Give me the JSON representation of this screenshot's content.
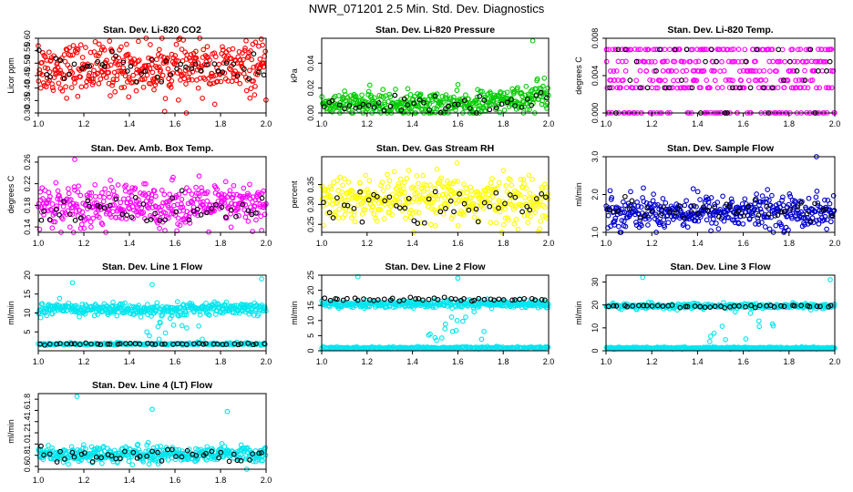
{
  "page_title": "NWR_071201  2.5 Min. Std. Dev. Diagnostics",
  "chart_data": [
    {
      "type": "scatter",
      "title": "Stan. Dev. Li-820 CO2",
      "ylabel": "Licor ppm",
      "xlim": [
        1.0,
        2.0
      ],
      "ylim": [
        0.3,
        0.6
      ],
      "xticks": [
        "1.0",
        "1.2",
        "1.4",
        "1.6",
        "1.8",
        "2.0"
      ],
      "yticks": [
        "0.30",
        "0.35",
        "0.40",
        "0.45",
        "0.50",
        "0.55",
        "0.60"
      ],
      "color": "#ff0000",
      "series": [
        {
          "name": "cloud",
          "center": 0.48,
          "spread": 0.05,
          "count": 420
        },
        {
          "name": "black",
          "center": 0.48,
          "spread": 0.03,
          "count": 45
        }
      ],
      "outliers": [
        {
          "x": 1.0,
          "y": 0.57
        },
        {
          "x": 1.65,
          "y": 0.3
        }
      ]
    },
    {
      "type": "scatter",
      "title": "Stan. Dev. Li-820 Pressure",
      "ylabel": "kPa",
      "xlim": [
        1.0,
        2.0
      ],
      "ylim": [
        0.0,
        0.06
      ],
      "xticks": [
        "1.0",
        "1.2",
        "1.4",
        "1.6",
        "1.8",
        "2.0"
      ],
      "yticks": [
        "0.00",
        "0.02",
        "0.04"
      ],
      "color": "#00cc00",
      "series": [
        {
          "name": "cloud",
          "center": 0.007,
          "spread": 0.005,
          "count": 420
        },
        {
          "name": "black",
          "center": 0.007,
          "spread": 0.003,
          "count": 45
        }
      ],
      "outliers": [
        {
          "x": 1.93,
          "y": 0.058
        }
      ]
    },
    {
      "type": "scatter",
      "title": "Stan. Dev. Li-820 Temp.",
      "ylabel": "degrees C",
      "xlim": [
        1.0,
        2.0
      ],
      "ylim": [
        0.0,
        0.008
      ],
      "xticks": [
        "1.0",
        "1.2",
        "1.4",
        "1.6",
        "1.8",
        "2.0"
      ],
      "yticks": [
        "0.000",
        "0.004",
        "0.008"
      ],
      "color": "#ff00ff",
      "levels": [
        0.0,
        0.0027,
        0.0035,
        0.0045,
        0.0055,
        0.0068
      ],
      "series": [
        {
          "name": "cloud",
          "count": 380
        },
        {
          "name": "black",
          "count": 40
        }
      ]
    },
    {
      "type": "scatter",
      "title": "Stan. Dev. Amb. Box Temp.",
      "ylabel": "degrees C",
      "xlim": [
        1.0,
        2.0
      ],
      "ylim": [
        0.13,
        0.27
      ],
      "xticks": [
        "1.0",
        "1.2",
        "1.4",
        "1.6",
        "1.8",
        "2.0"
      ],
      "yticks": [
        "0.14",
        "0.18",
        "0.22",
        "0.26"
      ],
      "color": "#ff00ff",
      "series": [
        {
          "name": "cloud",
          "center": 0.18,
          "spread": 0.02,
          "count": 420
        },
        {
          "name": "black",
          "center": 0.17,
          "spread": 0.015,
          "count": 45
        }
      ],
      "outliers": [
        {
          "x": 1.16,
          "y": 0.265
        }
      ]
    },
    {
      "type": "scatter",
      "title": "Stan. Dev. Gas Stream RH",
      "ylabel": "percent",
      "xlim": [
        1.0,
        2.0
      ],
      "ylim": [
        0.23,
        0.42
      ],
      "xticks": [
        "1.0",
        "1.2",
        "1.4",
        "1.6",
        "1.8",
        "2.0"
      ],
      "yticks": [
        "0.25",
        "0.30",
        "0.35"
      ],
      "color": "#ffff00",
      "series": [
        {
          "name": "cloud",
          "center": 0.31,
          "spread": 0.03,
          "count": 420
        },
        {
          "name": "black",
          "center": 0.3,
          "spread": 0.025,
          "count": 45
        }
      ]
    },
    {
      "type": "scatter",
      "title": "Stan. Dev. Sample Flow",
      "ylabel": "ml/min",
      "xlim": [
        1.0,
        2.0
      ],
      "ylim": [
        1.0,
        3.0
      ],
      "xticks": [
        "1.0",
        "1.2",
        "1.4",
        "1.6",
        "1.8",
        "2.0"
      ],
      "yticks": [
        "1.0",
        "2.0",
        "3.0"
      ],
      "color": "#0000cc",
      "series": [
        {
          "name": "cloud",
          "center": 1.55,
          "spread": 0.22,
          "count": 420
        },
        {
          "name": "black",
          "center": 1.55,
          "spread": 0.15,
          "count": 45
        }
      ],
      "outliers": [
        {
          "x": 1.92,
          "y": 3.0
        }
      ]
    },
    {
      "type": "scatter",
      "title": "Stan. Dev. Line 1 Flow",
      "ylabel": "ml/min",
      "xlim": [
        1.0,
        2.0
      ],
      "ylim": [
        0,
        20
      ],
      "xticks": [
        "1.0",
        "1.2",
        "1.4",
        "1.6",
        "1.8",
        "2.0"
      ],
      "yticks": [
        "5",
        "10",
        "15",
        "20"
      ],
      "color": "#00e5ee",
      "series": [
        {
          "name": "band-high",
          "center": 11,
          "spread": 0.8,
          "count": 400
        },
        {
          "name": "band-low",
          "center": 1.8,
          "spread": 0.15,
          "count": 200
        },
        {
          "name": "black",
          "center": 1.8,
          "spread": 0.1,
          "count": 45
        }
      ],
      "outliers": [
        {
          "x": 1.15,
          "y": 18
        },
        {
          "x": 1.5,
          "y": 17.5
        },
        {
          "x": 1.98,
          "y": 19
        }
      ]
    },
    {
      "type": "scatter",
      "title": "Stan. Dev. Line 2 Flow",
      "ylabel": "ml/min",
      "xlim": [
        1.0,
        2.0
      ],
      "ylim": [
        0,
        25
      ],
      "xticks": [
        "1.0",
        "1.2",
        "1.4",
        "1.6",
        "1.8",
        "2.0"
      ],
      "yticks": [
        "0",
        "5",
        "10",
        "15",
        "20",
        "25"
      ],
      "color": "#00e5ee",
      "series": [
        {
          "name": "band-high",
          "center": 15.5,
          "spread": 0.6,
          "count": 380
        },
        {
          "name": "band-low",
          "center": 1.0,
          "spread": 0.15,
          "count": 220
        },
        {
          "name": "black",
          "center": 17,
          "spread": 0.3,
          "count": 45
        }
      ],
      "outliers": [
        {
          "x": 1.16,
          "y": 24.5
        },
        {
          "x": 1.6,
          "y": 24
        }
      ]
    },
    {
      "type": "scatter",
      "title": "Stan. Dev. Line 3 Flow",
      "ylabel": "ml/min",
      "xlim": [
        1.0,
        2.0
      ],
      "ylim": [
        0,
        33
      ],
      "xticks": [
        "1.0",
        "1.2",
        "1.4",
        "1.6",
        "1.8",
        "2.0"
      ],
      "yticks": [
        "0",
        "10",
        "20",
        "30"
      ],
      "color": "#00e5ee",
      "series": [
        {
          "name": "band-high",
          "center": 19.5,
          "spread": 0.6,
          "count": 300
        },
        {
          "name": "band-low",
          "center": 1.2,
          "spread": 0.2,
          "count": 300
        },
        {
          "name": "black",
          "center": 19.5,
          "spread": 0.3,
          "count": 45
        }
      ],
      "outliers": [
        {
          "x": 1.16,
          "y": 32
        },
        {
          "x": 1.98,
          "y": 31
        }
      ]
    },
    {
      "type": "scatter",
      "title": "Stan. Dev. Line 4 (LT) Flow",
      "ylabel": "ml/min",
      "xlim": [
        1.0,
        2.0
      ],
      "ylim": [
        0.55,
        1.9
      ],
      "xticks": [
        "1.0",
        "1.2",
        "1.4",
        "1.6",
        "1.8",
        "2.0"
      ],
      "yticks": [
        "0.6",
        "0.8",
        "1.0",
        "1.2",
        "1.4",
        "1.6",
        "1.8"
      ],
      "color": "#00e5ee",
      "series": [
        {
          "name": "cloud",
          "center": 0.82,
          "spread": 0.07,
          "count": 420
        },
        {
          "name": "black",
          "center": 0.82,
          "spread": 0.06,
          "count": 45
        }
      ],
      "outliers": [
        {
          "x": 1.17,
          "y": 1.85
        },
        {
          "x": 1.5,
          "y": 1.62
        },
        {
          "x": 1.83,
          "y": 1.58
        }
      ]
    }
  ]
}
